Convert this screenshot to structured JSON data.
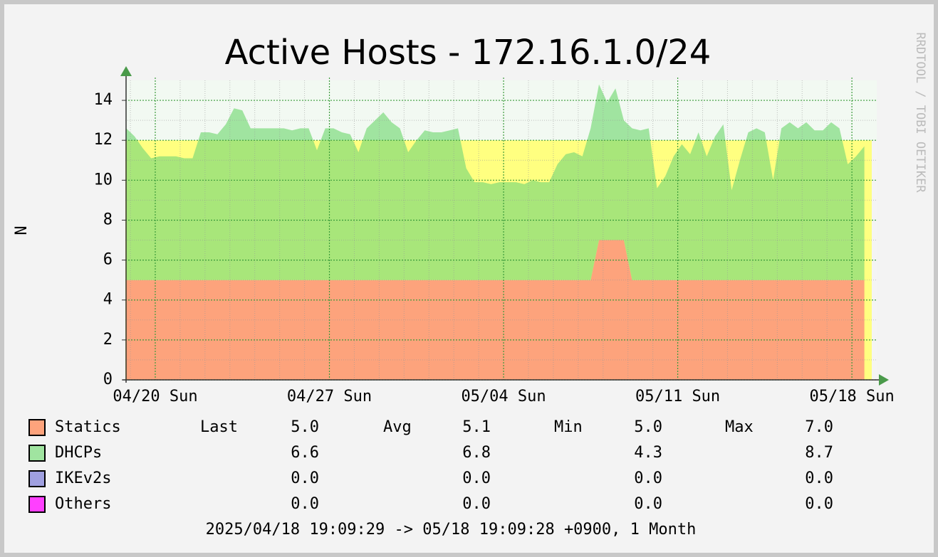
{
  "chart_data": {
    "type": "area",
    "stacked": true,
    "title": "Active Hosts - 172.16.1.0/24",
    "y_label": "N",
    "watermark": "RRDTOOL / TOBI OETIKER",
    "footer": "2025/04/18 19:09:29 -> 05/18 19:09:28 +0900, 1 Month",
    "xlim": [
      "2025-04-18T19:09:29",
      "2025-05-18T19:09:28"
    ],
    "xticks": [
      {
        "value": "2025-04-20T00:00",
        "label": "04/20 Sun"
      },
      {
        "value": "2025-04-27T00:00",
        "label": "04/27 Sun"
      },
      {
        "value": "2025-05-04T00:00",
        "label": "05/04 Sun"
      },
      {
        "value": "2025-05-11T00:00",
        "label": "05/11 Sun"
      },
      {
        "value": "2025-05-18T00:00",
        "label": "05/18 Sun"
      }
    ],
    "minor_xticks": [
      "2025-04-19T00:00",
      "2025-04-21T00:00",
      "2025-04-22T00:00",
      "2025-04-23T00:00",
      "2025-04-24T00:00",
      "2025-04-25T00:00",
      "2025-04-26T00:00",
      "2025-04-28T00:00",
      "2025-04-29T00:00",
      "2025-04-30T00:00",
      "2025-05-01T00:00",
      "2025-05-02T00:00",
      "2025-05-03T00:00",
      "2025-05-05T00:00",
      "2025-05-06T00:00",
      "2025-05-07T00:00",
      "2025-05-08T00:00",
      "2025-05-09T00:00",
      "2025-05-10T00:00",
      "2025-05-12T00:00",
      "2025-05-13T00:00",
      "2025-05-14T00:00",
      "2025-05-15T00:00",
      "2025-05-16T00:00",
      "2025-05-17T00:00"
    ],
    "ylim": [
      0,
      15
    ],
    "yticks": [
      0,
      2,
      4,
      6,
      8,
      10,
      12,
      14
    ],
    "minor_yticks": [
      1,
      3,
      5,
      7,
      9,
      11,
      13
    ],
    "grid": true,
    "threshold": 12,
    "threshold_color": "#ffff80",
    "stat_names": [
      "Last",
      "Avg",
      "Min",
      "Max"
    ],
    "x": [
      "2025-04-18T20:00",
      "2025-04-19T04:00",
      "2025-04-19T12:00",
      "2025-04-19T20:00",
      "2025-04-20T04:00",
      "2025-04-20T12:00",
      "2025-04-20T20:00",
      "2025-04-21T04:00",
      "2025-04-21T12:00",
      "2025-04-21T20:00",
      "2025-04-22T04:00",
      "2025-04-22T12:00",
      "2025-04-22T20:00",
      "2025-04-23T04:00",
      "2025-04-23T12:00",
      "2025-04-23T20:00",
      "2025-04-24T04:00",
      "2025-04-24T12:00",
      "2025-04-24T20:00",
      "2025-04-25T04:00",
      "2025-04-25T12:00",
      "2025-04-25T20:00",
      "2025-04-26T04:00",
      "2025-04-26T12:00",
      "2025-04-26T20:00",
      "2025-04-27T04:00",
      "2025-04-27T12:00",
      "2025-04-27T20:00",
      "2025-04-28T04:00",
      "2025-04-28T12:00",
      "2025-04-28T20:00",
      "2025-04-29T04:00",
      "2025-04-29T12:00",
      "2025-04-29T20:00",
      "2025-04-30T04:00",
      "2025-04-30T12:00",
      "2025-04-30T20:00",
      "2025-05-01T04:00",
      "2025-05-01T12:00",
      "2025-05-01T20:00",
      "2025-05-02T04:00",
      "2025-05-02T12:00",
      "2025-05-02T20:00",
      "2025-05-03T04:00",
      "2025-05-03T12:00",
      "2025-05-03T20:00",
      "2025-05-04T04:00",
      "2025-05-04T12:00",
      "2025-05-04T20:00",
      "2025-05-05T04:00",
      "2025-05-05T12:00",
      "2025-05-05T20:00",
      "2025-05-06T04:00",
      "2025-05-06T12:00",
      "2025-05-06T20:00",
      "2025-05-07T04:00",
      "2025-05-07T12:00",
      "2025-05-07T20:00",
      "2025-05-08T04:00",
      "2025-05-08T12:00",
      "2025-05-08T20:00",
      "2025-05-09T04:00",
      "2025-05-09T12:00",
      "2025-05-09T20:00",
      "2025-05-10T04:00",
      "2025-05-10T12:00",
      "2025-05-10T20:00",
      "2025-05-11T04:00",
      "2025-05-11T12:00",
      "2025-05-11T20:00",
      "2025-05-12T04:00",
      "2025-05-12T12:00",
      "2025-05-12T20:00",
      "2025-05-13T04:00",
      "2025-05-13T12:00",
      "2025-05-13T20:00",
      "2025-05-14T04:00",
      "2025-05-14T12:00",
      "2025-05-14T20:00",
      "2025-05-15T04:00",
      "2025-05-15T12:00",
      "2025-05-15T20:00",
      "2025-05-16T04:00",
      "2025-05-16T12:00",
      "2025-05-16T20:00",
      "2025-05-17T04:00",
      "2025-05-17T12:00",
      "2025-05-17T20:00",
      "2025-05-18T04:00",
      "2025-05-18T12:00"
    ],
    "series": [
      {
        "name": "Statics",
        "color": "#fda37c",
        "stats": [
          "5.0",
          "5.1",
          "5.0",
          "7.0"
        ],
        "values": [
          5,
          5,
          5,
          5,
          5,
          5,
          5,
          5,
          5,
          5,
          5,
          5,
          5,
          5,
          5,
          5,
          5,
          5,
          5,
          5,
          5,
          5,
          5,
          5,
          5,
          5,
          5,
          5,
          5,
          5,
          5,
          5,
          5,
          5,
          5,
          5,
          5,
          5,
          5,
          5,
          5,
          5,
          5,
          5,
          5,
          5,
          5,
          5,
          5,
          5,
          5,
          5,
          5,
          5,
          5,
          5,
          5,
          7,
          7,
          7,
          7,
          5,
          5,
          5,
          5,
          5,
          5,
          5,
          5,
          5,
          5,
          5,
          5,
          5,
          5,
          5,
          5,
          5,
          5,
          5,
          5,
          5,
          5,
          5,
          5,
          5,
          5,
          5,
          5,
          5
        ]
      },
      {
        "name": "DHCPs",
        "color": "#a0e4a0",
        "stats": [
          "6.6",
          "6.8",
          "4.3",
          "8.7"
        ],
        "values": [
          7.6,
          7.2,
          6.6,
          6.1,
          6.2,
          6.2,
          6.2,
          6.1,
          6.1,
          7.4,
          7.4,
          7.3,
          7.8,
          8.6,
          8.5,
          7.6,
          7.6,
          7.6,
          7.6,
          7.6,
          7.5,
          7.6,
          7.6,
          6.5,
          7.6,
          7.6,
          7.4,
          7.3,
          6.4,
          7.6,
          8.0,
          8.4,
          7.9,
          7.6,
          6.4,
          7.0,
          7.5,
          7.4,
          7.4,
          7.5,
          7.6,
          5.6,
          4.9,
          4.9,
          4.8,
          4.9,
          4.9,
          4.9,
          4.8,
          5.0,
          4.9,
          4.9,
          5.8,
          6.3,
          6.4,
          6.2,
          7.6,
          7.8,
          6.9,
          7.6,
          6.0,
          7.6,
          7.5,
          7.6,
          4.6,
          5.2,
          6.2,
          6.8,
          6.3,
          7.4,
          6.2,
          7.2,
          7.8,
          4.5,
          6.0,
          7.4,
          7.6,
          7.4,
          5.0,
          7.6,
          7.9,
          7.6,
          7.9,
          7.5,
          7.5,
          7.9,
          7.6,
          5.8,
          6.2,
          6.7
        ]
      },
      {
        "name": "IKEv2s",
        "color": "#a0a0e0",
        "stats": [
          "0.0",
          "0.0",
          "0.0",
          "0.0"
        ]
      },
      {
        "name": "Others",
        "color": "#ff40ff",
        "stats": [
          "0.0",
          "0.0",
          "0.0",
          "0.0"
        ]
      }
    ]
  }
}
